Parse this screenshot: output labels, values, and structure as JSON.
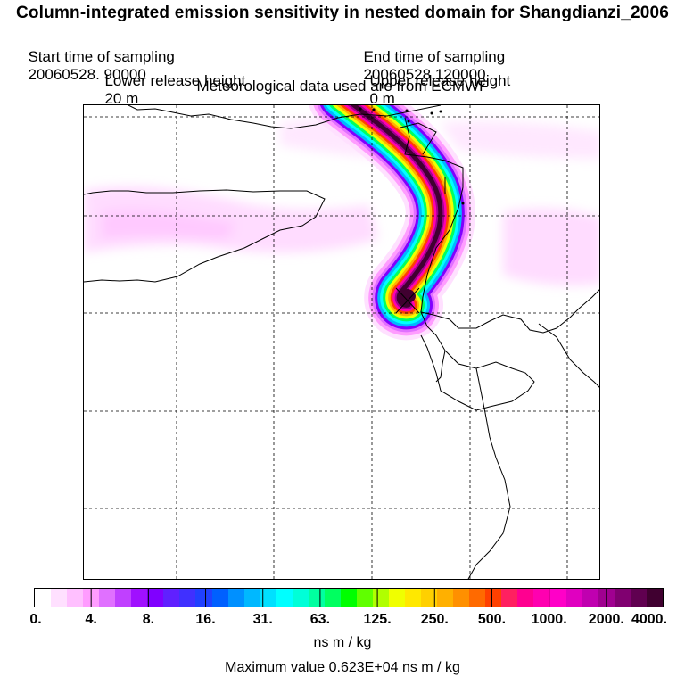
{
  "header": {
    "title": "Column-integrated emission sensitivity in nested domain for Shangdianzi_2006",
    "start_label": "Start time of sampling",
    "start_value": "20060528. 90000",
    "end_label": "End time of sampling",
    "end_value": "20060528.120000",
    "lower_label": "Lower release height",
    "lower_value": "20 m",
    "upper_label": "Upper release height",
    "upper_value": "0 m",
    "met_text": "Meteorological data used are from ECMWF"
  },
  "colorbar": {
    "ticks": [
      "0.",
      "4.",
      "8.",
      "16.",
      "31.",
      "63.",
      "125.",
      "250.",
      "500.",
      "1000.",
      "2000.",
      "4000."
    ],
    "colors": [
      "#ffffff",
      "#ffe0ff",
      "#ffc0ff",
      "#ff9cff",
      "#e070ff",
      "#c040ff",
      "#a010ff",
      "#8000ff",
      "#6020ff",
      "#4030ff",
      "#2040ff",
      "#0060ff",
      "#0090ff",
      "#00b8ff",
      "#00e0ff",
      "#00ffff",
      "#00ffd8",
      "#00ffa0",
      "#00ff60",
      "#00ff00",
      "#60ff00",
      "#b0ff00",
      "#f0ff00",
      "#ffe800",
      "#ffd000",
      "#ffb000",
      "#ff9000",
      "#ff6a00",
      "#ff4000",
      "#ff2060",
      "#ff0090",
      "#ff00b0",
      "#ff00c8",
      "#e000c0",
      "#c000b0",
      "#a00090",
      "#800070",
      "#600050",
      "#400030"
    ],
    "units": "ns m / kg",
    "max_label": "Maximum value",
    "max_value": "0.623E+04 ns m / kg"
  },
  "map": {
    "receptor_marker": "×",
    "plume_colors": [
      "#ffe0ff",
      "#ff9cff",
      "#e070ff",
      "#8000ff",
      "#00b8ff",
      "#00ffff",
      "#00ff60",
      "#f0ff00",
      "#ffb000",
      "#ff4000",
      "#ff00b0",
      "#a00090",
      "#400030"
    ]
  }
}
